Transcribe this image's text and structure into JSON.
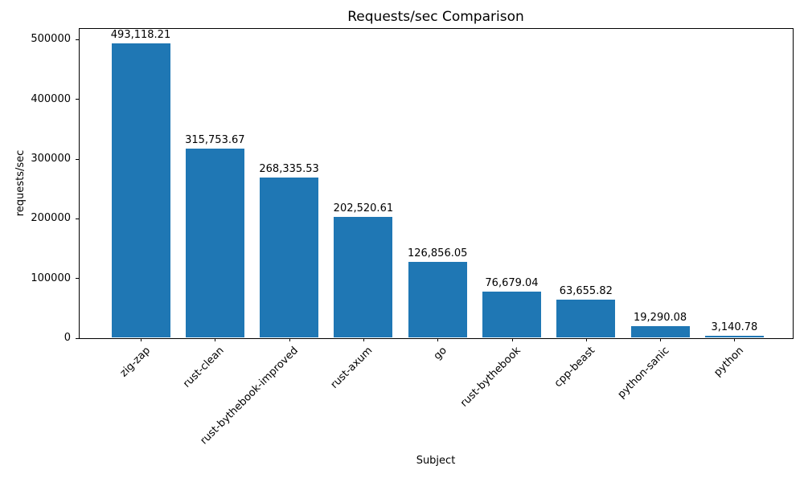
{
  "chart_data": {
    "type": "bar",
    "title": "Requests/sec Comparison",
    "xlabel": "Subject",
    "ylabel": "requests/sec",
    "categories": [
      "zig-zap",
      "rust-clean",
      "rust-bythebook-improved",
      "rust-axum",
      "go",
      "rust-bythebook",
      "cpp-beast",
      "python-sanic",
      "python"
    ],
    "values": [
      493118.21,
      315753.67,
      268335.53,
      202520.61,
      126856.05,
      76679.04,
      63655.82,
      19290.08,
      3140.78
    ],
    "value_labels": [
      "493,118.21",
      "315,753.67",
      "268,335.53",
      "202,520.61",
      "126,856.05",
      "76,679.04",
      "63,655.82",
      "19,290.08",
      "3,140.78"
    ],
    "bar_color": "#1f77b4",
    "ylim": [
      0,
      519500
    ],
    "yticks": [
      0,
      100000,
      200000,
      300000,
      400000,
      500000
    ],
    "ytick_labels": [
      "0",
      "100000",
      "200000",
      "300000",
      "400000",
      "500000"
    ],
    "grid": false,
    "legend": null,
    "x_tick_rotation_deg": 45
  }
}
